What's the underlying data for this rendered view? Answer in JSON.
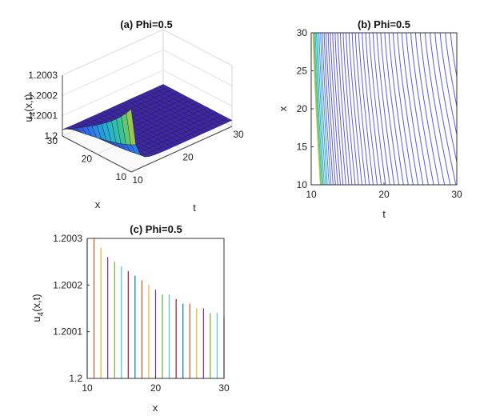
{
  "chart_data": [
    {
      "type": "surface",
      "title": "(a) Phi=0.5",
      "xlabel": "t",
      "ylabel": "x",
      "zlabel": "u",
      "zlabel_sub": "4",
      "zlabel_tail": "(x,t)",
      "t_range": [
        10,
        30
      ],
      "x_range": [
        10,
        30
      ],
      "z_range": [
        1.2,
        1.2003
      ],
      "t_ticks": [
        "10",
        "20",
        "30"
      ],
      "x_ticks": [
        "10",
        "20",
        "30"
      ],
      "z_ticks": [
        "1.2",
        "1.2001",
        "1.2002",
        "1.2003"
      ],
      "peak_value": 1.2003,
      "colormap": [
        "#3e26a8",
        "#2f6ef0",
        "#22b1d4",
        "#3fc88a",
        "#c5c530",
        "#f9fb15"
      ]
    },
    {
      "type": "contour",
      "title": "(b) Phi=0.5",
      "xlabel": "t",
      "ylabel": "x",
      "xlim": [
        10,
        30
      ],
      "ylim": [
        10,
        30
      ],
      "x_ticks": [
        "10",
        "20",
        "30"
      ],
      "y_ticks": [
        "10",
        "15",
        "20",
        "25",
        "30"
      ],
      "levels": 45,
      "line_color": "#5c5ce0"
    },
    {
      "type": "stem",
      "title": "(c) Phi=0.5",
      "xlabel": "x",
      "ylabel": "u",
      "ylabel_sub": "4",
      "ylabel_tail": "(x,t)",
      "xlim": [
        10,
        30
      ],
      "ylim": [
        1.2,
        1.2003
      ],
      "x_ticks": [
        "10",
        "20",
        "30"
      ],
      "y_ticks": [
        "1.2",
        "1.2001",
        "1.2002",
        "1.2003"
      ],
      "x": [
        10,
        11,
        12,
        13,
        14,
        15,
        16,
        17,
        18,
        19,
        20,
        21,
        22,
        23,
        24,
        25,
        26,
        27,
        28,
        29,
        30
      ],
      "values": [
        1.20031,
        1.2003,
        1.20028,
        1.20026,
        1.20025,
        1.20024,
        1.20023,
        1.20022,
        1.20021,
        1.2002,
        1.20019,
        1.20018,
        1.20018,
        1.20017,
        1.20016,
        1.20016,
        1.20015,
        1.20015,
        1.20014,
        1.20014,
        1.20013
      ],
      "colors": [
        "#0072bd",
        "#d95319",
        "#edb120",
        "#7e2f8e",
        "#77ac30",
        "#4dbeee",
        "#a2142f"
      ]
    }
  ]
}
